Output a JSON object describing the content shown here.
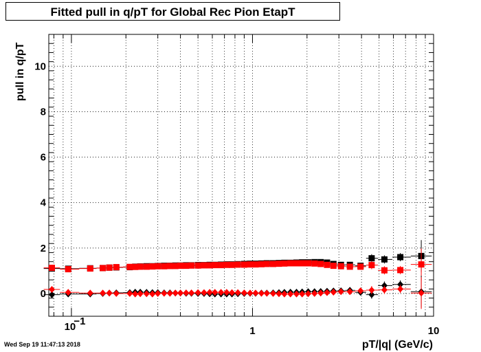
{
  "title": "Fitted pull in q/pT for Global Rec Pion EtapT",
  "timestamp": "Wed Sep 19 11:47:13 2018",
  "chart_data": {
    "type": "scatter",
    "title": "Fitted pull in q/pT for Global Rec Pion EtapT",
    "xlabel": "pT/|q| (GeV/c)",
    "ylabel": "pull in q/pT",
    "xscale": "log",
    "xlim": [
      0.075,
      10
    ],
    "ylim": [
      -1,
      11.4
    ],
    "grid": true,
    "x_ticks": [
      {
        "value": 0.1,
        "base": "10",
        "exp": "−1"
      },
      {
        "value": 1,
        "base": "1",
        "exp": ""
      },
      {
        "value": 10,
        "base": "10",
        "exp": ""
      }
    ],
    "y_ticks": [
      0,
      2,
      4,
      6,
      8,
      10
    ],
    "x": [
      0.078,
      0.096,
      0.127,
      0.149,
      0.162,
      0.177,
      0.21,
      0.225,
      0.24,
      0.26,
      0.28,
      0.3,
      0.325,
      0.35,
      0.375,
      0.4,
      0.43,
      0.46,
      0.5,
      0.54,
      0.58,
      0.62,
      0.67,
      0.72,
      0.77,
      0.83,
      0.9,
      0.97,
      1.04,
      1.12,
      1.2,
      1.3,
      1.4,
      1.5,
      1.62,
      1.75,
      1.88,
      2.03,
      2.2,
      2.38,
      2.58,
      2.8,
      3.08,
      3.45,
      3.95,
      4.55,
      5.35,
      6.55,
      8.55
    ],
    "series": [
      {
        "name": "",
        "marker": "square",
        "color": "#000000",
        "values": [
          1.1,
          1.09,
          1.11,
          1.12,
          1.14,
          1.15,
          1.16,
          1.18,
          1.19,
          1.2,
          1.2,
          1.21,
          1.22,
          1.22,
          1.23,
          1.23,
          1.24,
          1.24,
          1.25,
          1.25,
          1.26,
          1.26,
          1.27,
          1.28,
          1.28,
          1.29,
          1.3,
          1.31,
          1.31,
          1.32,
          1.33,
          1.33,
          1.34,
          1.35,
          1.35,
          1.36,
          1.37,
          1.37,
          1.38,
          1.38,
          1.36,
          1.3,
          1.26,
          1.26,
          1.22,
          1.55,
          1.5,
          1.6,
          1.65
        ]
      },
      {
        "name": "",
        "marker": "square",
        "color": "#ff0000",
        "values": [
          1.13,
          1.07,
          1.1,
          1.12,
          1.14,
          1.16,
          1.17,
          1.17,
          1.18,
          1.18,
          1.19,
          1.2,
          1.2,
          1.21,
          1.21,
          1.22,
          1.22,
          1.23,
          1.23,
          1.24,
          1.24,
          1.25,
          1.25,
          1.26,
          1.26,
          1.27,
          1.27,
          1.28,
          1.28,
          1.29,
          1.3,
          1.3,
          1.31,
          1.32,
          1.33,
          1.33,
          1.33,
          1.33,
          1.32,
          1.3,
          1.26,
          1.22,
          1.2,
          1.18,
          1.18,
          1.25,
          1.02,
          1.03,
          1.28
        ]
      },
      {
        "name": "",
        "marker": "diamond",
        "color": "#000000",
        "values": [
          -0.05,
          -0.02,
          -0.02,
          0.0,
          0.02,
          0.03,
          0.04,
          0.06,
          0.06,
          0.05,
          0.04,
          0.04,
          0.03,
          0.03,
          0.02,
          0.02,
          0.01,
          0.01,
          0.0,
          0.0,
          -0.01,
          -0.02,
          -0.02,
          -0.02,
          -0.02,
          -0.01,
          0.0,
          0.01,
          0.01,
          0.02,
          0.02,
          0.03,
          0.04,
          0.05,
          0.06,
          0.06,
          0.07,
          0.08,
          0.08,
          0.09,
          0.1,
          0.11,
          0.12,
          0.14,
          0.05,
          -0.05,
          0.35,
          0.4,
          0.08
        ]
      },
      {
        "name": "",
        "marker": "diamond",
        "color": "#ff0000",
        "values": [
          0.18,
          0.05,
          0.02,
          0.02,
          0.02,
          0.0,
          0.0,
          -0.02,
          -0.01,
          -0.01,
          -0.02,
          0.0,
          0.01,
          0.01,
          0.02,
          0.02,
          0.03,
          0.03,
          0.04,
          0.04,
          0.05,
          0.05,
          0.05,
          0.05,
          0.04,
          0.04,
          0.03,
          0.02,
          0.02,
          0.01,
          0.01,
          0.0,
          -0.01,
          -0.02,
          -0.02,
          -0.02,
          -0.02,
          -0.01,
          0.0,
          0.02,
          0.04,
          0.06,
          0.08,
          0.08,
          0.12,
          0.15,
          0.16,
          0.2,
          0.02
        ]
      }
    ]
  }
}
